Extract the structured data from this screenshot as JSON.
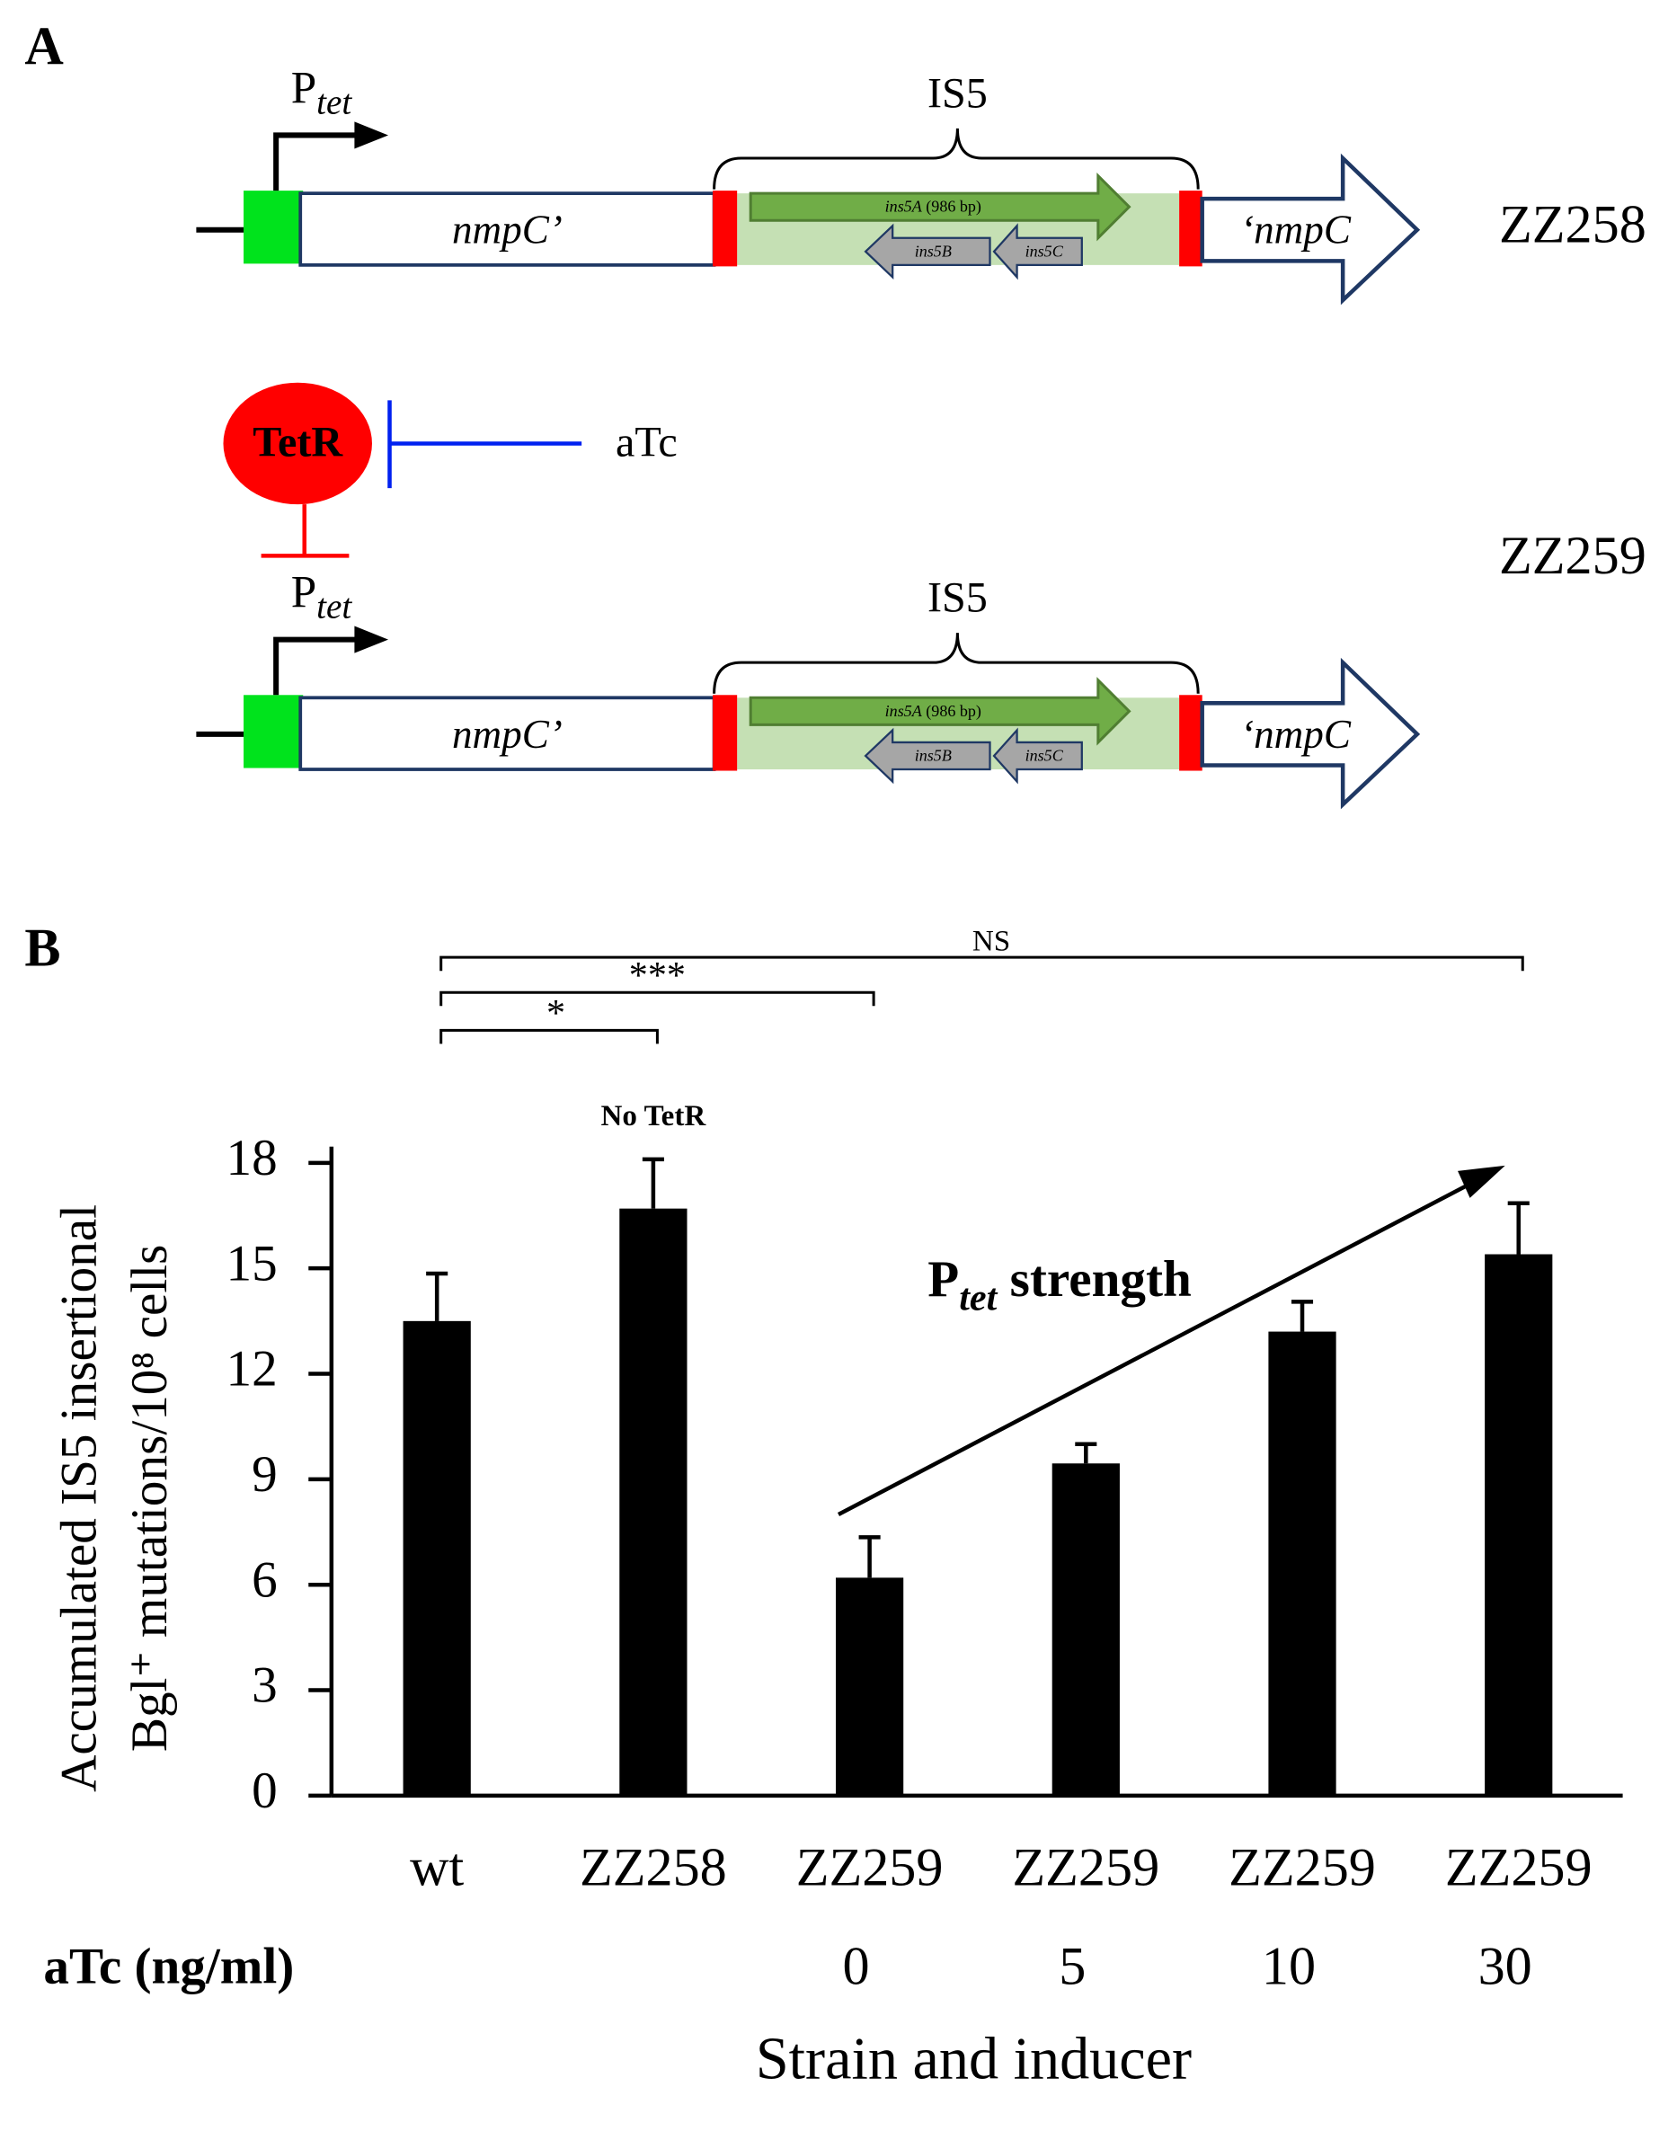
{
  "panel_a": {
    "label": "A",
    "constructs": [
      {
        "promoter": "P",
        "promoter_sub": "tet",
        "insertion": "IS5",
        "gene_5": "nmpC’",
        "gene_3": "‘nmpC",
        "ins5A": "ins5A",
        "ins5A_size": "(986 bp)",
        "ins5B": "ins5B",
        "ins5C": "ins5C",
        "strain": "ZZ258"
      },
      {
        "promoter": "P",
        "promoter_sub": "tet",
        "insertion": "IS5",
        "gene_5": "nmpC’",
        "gene_3": "‘nmpC",
        "ins5A": "ins5A",
        "ins5A_size": "(986 bp)",
        "ins5B": "ins5B",
        "ins5C": "ins5C",
        "strain": "ZZ259"
      }
    ],
    "repressor": "TetR",
    "inducer": "aTc"
  },
  "chart_data": {
    "type": "bar",
    "panel_label": "B",
    "y_label": [
      "Accumulated IS5 insertional",
      "Bgl⁺ mutations/10⁸ cells"
    ],
    "x_label": "Strain and inducer",
    "categories": [
      "wt",
      "ZZ258",
      "ZZ259",
      "ZZ259",
      "ZZ259",
      "ZZ259"
    ],
    "values": [
      13.5,
      16.7,
      6.2,
      9.45,
      13.2,
      15.4
    ],
    "errors": [
      1.35,
      1.4,
      1.15,
      0.55,
      0.85,
      1.45
    ],
    "color": "#000000",
    "ylim": [
      0,
      18
    ],
    "yticks": [
      0,
      3,
      6,
      9,
      12,
      15,
      18
    ],
    "inducer": {
      "label": "aTc (ng/ml)",
      "values": [
        null,
        null,
        0,
        5,
        10,
        30
      ]
    },
    "bar_note": "No TetR",
    "trend_label": {
      "main": "P",
      "sub": "tet",
      "rest": " strength"
    },
    "significance": [
      "*",
      "***",
      "NS"
    ]
  }
}
